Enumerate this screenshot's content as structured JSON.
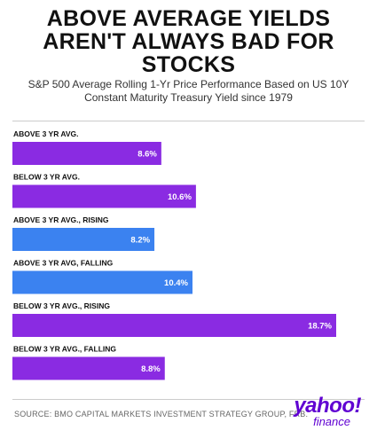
{
  "title_line1": "ABOVE AVERAGE YIELDS",
  "title_line2": "AREN'T ALWAYS BAD FOR",
  "title_line3": "STOCKS",
  "subtitle_line1": "S&P 500 Average Rolling 1-Yr Price Performance Based on US 10Y",
  "subtitle_line2": "Constant Maturity Treasury Yield since 1979",
  "source": "SOURCE: BMO CAPITAL MARKETS INVESTMENT STRATEGY GROUP, FRB.",
  "logo": {
    "main": "yahoo!",
    "sub": "finance"
  },
  "colors": {
    "purple": "#8a2be2",
    "blue": "#3b82f0",
    "logo": "#6001d2"
  },
  "chart_data": {
    "type": "bar",
    "orientation": "horizontal",
    "categories": [
      "ABOVE 3 YR AVG.",
      "BELOW 3 YR AVG.",
      "ABOVE 3 YR AVG., RISING",
      "ABOVE 3 YR AVG, FALLING",
      "BELOW 3 YR AVG., RISING",
      "BELOW 3 YR AVG., FALLING"
    ],
    "values": [
      8.6,
      10.6,
      8.2,
      10.4,
      18.7,
      8.8
    ],
    "labels": [
      "8.6%",
      "10.6%",
      "8.2%",
      "10.4%",
      "18.7%",
      "8.8%"
    ],
    "bar_colors": [
      "#8a2be2",
      "#8a2be2",
      "#3b82f0",
      "#3b82f0",
      "#8a2be2",
      "#8a2be2"
    ],
    "xlim": [
      0,
      18.7
    ],
    "grid": false,
    "legend": "none"
  }
}
